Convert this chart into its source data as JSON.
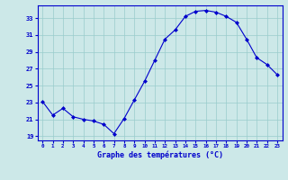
{
  "hours": [
    0,
    1,
    2,
    3,
    4,
    5,
    6,
    7,
    8,
    9,
    10,
    11,
    12,
    13,
    14,
    15,
    16,
    17,
    18,
    19,
    20,
    21,
    22,
    23
  ],
  "temps": [
    23.1,
    21.5,
    22.3,
    21.3,
    21.0,
    20.8,
    20.4,
    19.3,
    21.1,
    23.3,
    25.5,
    28.0,
    30.5,
    31.6,
    33.2,
    33.8,
    33.9,
    33.7,
    33.2,
    32.5,
    30.5,
    28.3,
    27.5,
    26.3
  ],
  "line_color": "#0000cc",
  "marker": "D",
  "markersize": 2,
  "bg_color": "#cce8e8",
  "grid_color": "#99cccc",
  "xlabel": "Graphe des températures (°C)",
  "xlabel_color": "#0000cc",
  "tick_color": "#0000cc",
  "ylim": [
    18.5,
    34.5
  ],
  "yticks": [
    19,
    21,
    23,
    25,
    27,
    29,
    31,
    33
  ],
  "xlim": [
    -0.5,
    23.5
  ]
}
